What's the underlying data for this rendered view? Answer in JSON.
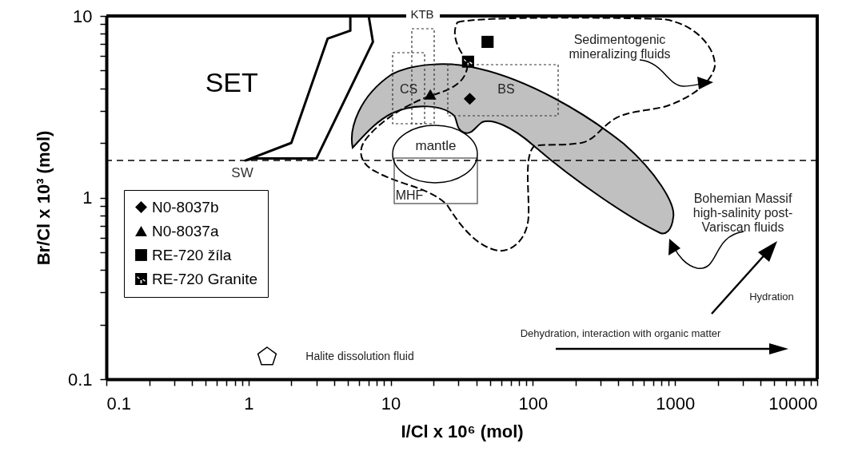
{
  "chart_data": {
    "type": "scatter",
    "xlabel": "I/Cl x 10⁶ (mol)",
    "ylabel": "Br/Cl x 10³ (mol)",
    "log": "xy",
    "legend": "bottom left",
    "xlim": [
      0.1,
      10000
    ],
    "ylim": [
      0.1,
      10
    ],
    "xticks": [
      0.1,
      {
        "value": 0.2,
        "label": null
      },
      {
        "value": 0.3,
        "label": null
      },
      {
        "value": 0.4,
        "label": null
      },
      {
        "value": 0.5,
        "label": null
      },
      {
        "value": 0.6,
        "label": null
      },
      {
        "value": 0.7,
        "label": null
      },
      {
        "value": 0.8,
        "label": null
      },
      {
        "value": 0.9,
        "label": null
      },
      1,
      {
        "value": 2,
        "label": null
      },
      {
        "value": 3,
        "label": null
      },
      {
        "value": 4,
        "label": null
      },
      {
        "value": 5,
        "label": null
      },
      {
        "value": 6,
        "label": null
      },
      {
        "value": 7,
        "label": null
      },
      {
        "value": 8,
        "label": null
      },
      {
        "value": 9,
        "label": null
      },
      10,
      {
        "value": 20,
        "label": null
      },
      {
        "value": 30,
        "label": null
      },
      {
        "value": 40,
        "label": null
      },
      {
        "value": 50,
        "label": null
      },
      {
        "value": 60,
        "label": null
      },
      {
        "value": 70,
        "label": null
      },
      {
        "value": 80,
        "label": null
      },
      {
        "value": 90,
        "label": null
      },
      100,
      {
        "value": 200,
        "label": null
      },
      {
        "value": 300,
        "label": null
      },
      {
        "value": 400,
        "label": null
      },
      {
        "value": 500,
        "label": null
      },
      {
        "value": 600,
        "label": null
      },
      {
        "value": 700,
        "label": null
      },
      {
        "value": 800,
        "label": null
      },
      {
        "value": 900,
        "label": null
      },
      1000,
      {
        "value": 2000,
        "label": null
      },
      {
        "value": 3000,
        "label": null
      },
      {
        "value": 4000,
        "label": null
      },
      {
        "value": 5000,
        "label": null
      },
      {
        "value": 6000,
        "label": null
      },
      {
        "value": 7000,
        "label": null
      },
      {
        "value": 8000,
        "label": null
      },
      {
        "value": 9000,
        "label": null
      },
      10000
    ],
    "yticks": [
      0.1,
      {
        "value": 0.2,
        "label": null
      },
      {
        "value": 0.3,
        "label": null
      },
      {
        "value": 0.4,
        "label": null
      },
      {
        "value": 0.5,
        "label": null
      },
      {
        "value": 0.6,
        "label": null
      },
      {
        "value": 0.7,
        "label": null
      },
      {
        "value": 0.8,
        "label": null
      },
      {
        "value": 0.9,
        "label": null
      },
      1,
      {
        "value": 2,
        "label": null
      },
      {
        "value": 3,
        "label": null
      },
      {
        "value": 4,
        "label": null
      },
      {
        "value": 5,
        "label": null
      },
      {
        "value": 6,
        "label": null
      },
      {
        "value": 7,
        "label": null
      },
      {
        "value": 8,
        "label": null
      },
      {
        "value": 9,
        "label": null
      },
      10
    ],
    "series": [
      {
        "name": "N0-8037b",
        "color": "#000000",
        "marker": "diamond",
        "x": [
          36
        ],
        "values": [
          3.5
        ]
      },
      {
        "name": "N0-8037a",
        "color": "#000000",
        "marker": "triangle",
        "x": [
          19
        ],
        "values": [
          3.7
        ]
      },
      {
        "name": "RE-720 žíla",
        "color": "#000000",
        "marker": "square",
        "x": [
          48
        ],
        "values": [
          7.2
        ]
      },
      {
        "name": "RE-720 Granite",
        "color": "#000000",
        "marker": "star",
        "x": [
          35
        ],
        "values": [
          5.6
        ]
      },
      {
        "name": "SET",
        "type": "line",
        "color": "#000000",
        "x": [
          5.2,
          5.2,
          3.6,
          2,
          0.95,
          1.08,
          3,
          7.5,
          7
        ],
        "values": [
          10,
          8.3,
          7.5,
          2,
          1.6,
          1.64,
          1.64,
          7.2,
          10
        ]
      }
    ],
    "ref_lines": [
      {
        "axis": "y",
        "value": 1.6,
        "label": "SW",
        "line_style": "dashed"
      }
    ],
    "annotations": [
      "KTB",
      "CS",
      "BS",
      "mantle",
      "MHF",
      "Sedimentogenic\nmineralizing fluids",
      "Bohemian Massif\nhigh-salinity post-\nVariscan fluids",
      "Hydration",
      "Dehydration, interaction with organic matter",
      "Halite dissolution fluid"
    ]
  }
}
